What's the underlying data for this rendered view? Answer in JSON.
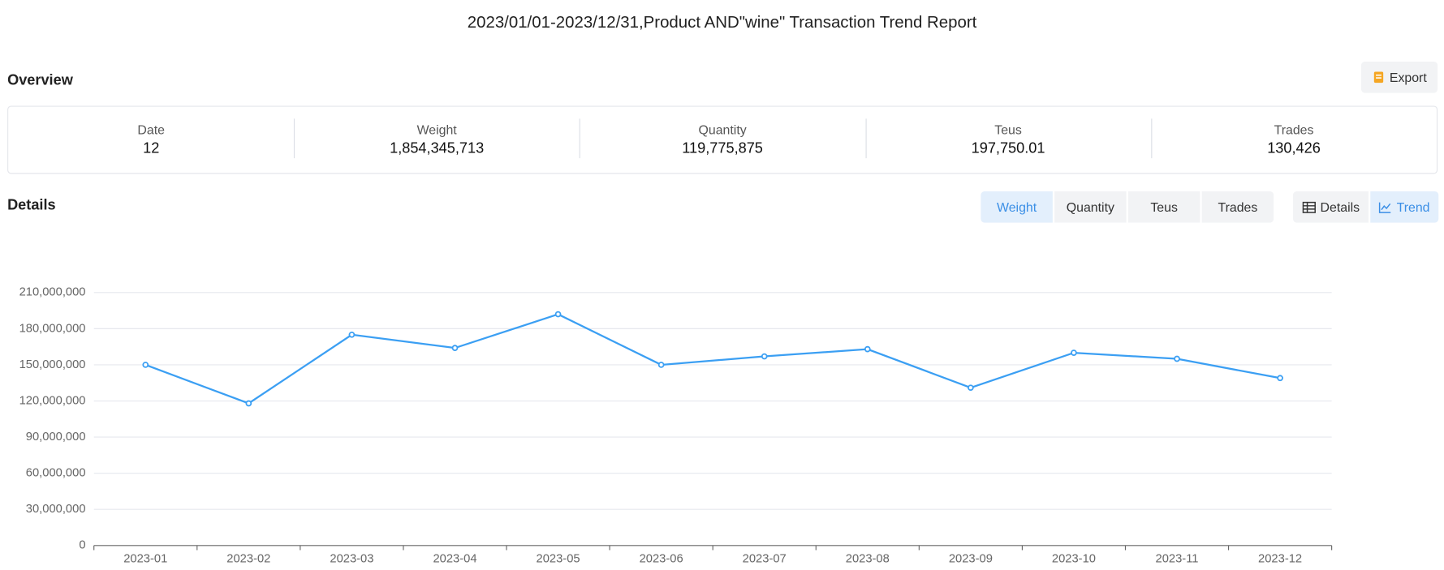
{
  "header": {
    "title": "2023/01/01-2023/12/31,Product AND\"wine\" Transaction Trend Report"
  },
  "overview": {
    "heading": "Overview",
    "export": "Export",
    "stats": [
      {
        "label": "Date",
        "value": "12"
      },
      {
        "label": "Weight",
        "value": "1,854,345,713"
      },
      {
        "label": "Quantity",
        "value": "119,775,875"
      },
      {
        "label": "Teus",
        "value": "197,750.01"
      },
      {
        "label": "Trades",
        "value": "130,426"
      }
    ]
  },
  "details": {
    "heading": "Details",
    "metric_tabs": [
      "Weight",
      "Quantity",
      "Teus",
      "Trades"
    ],
    "active_tab": 0,
    "view_tabs": [
      "Details",
      "Trend"
    ],
    "active_view": 1
  },
  "chart_data": {
    "type": "line",
    "categories": [
      "2023-01",
      "2023-02",
      "2023-03",
      "2023-04",
      "2023-05",
      "2023-06",
      "2023-07",
      "2023-08",
      "2023-09",
      "2023-10",
      "2023-11",
      "2023-12"
    ],
    "values": [
      150000000,
      118000000,
      175000000,
      164000000,
      192000000,
      150000000,
      157000000,
      163000000,
      131000000,
      160000000,
      155000000,
      139000000
    ],
    "color": "#3b9ff3",
    "ylim": [
      0,
      210000000
    ],
    "yticks": [
      0,
      {
        "value": 30000000,
        "label": "30,000,000"
      },
      {
        "value": 60000000,
        "label": "60,000,000"
      },
      {
        "value": 90000000,
        "label": "90,000,000"
      },
      {
        "value": 120000000,
        "label": "120,000,000"
      },
      {
        "value": 150000000,
        "label": "150,000,000"
      },
      {
        "value": 180000000,
        "label": "180,000,000"
      },
      {
        "value": 210000000,
        "label": "210,000,000"
      }
    ],
    "grid": true
  }
}
